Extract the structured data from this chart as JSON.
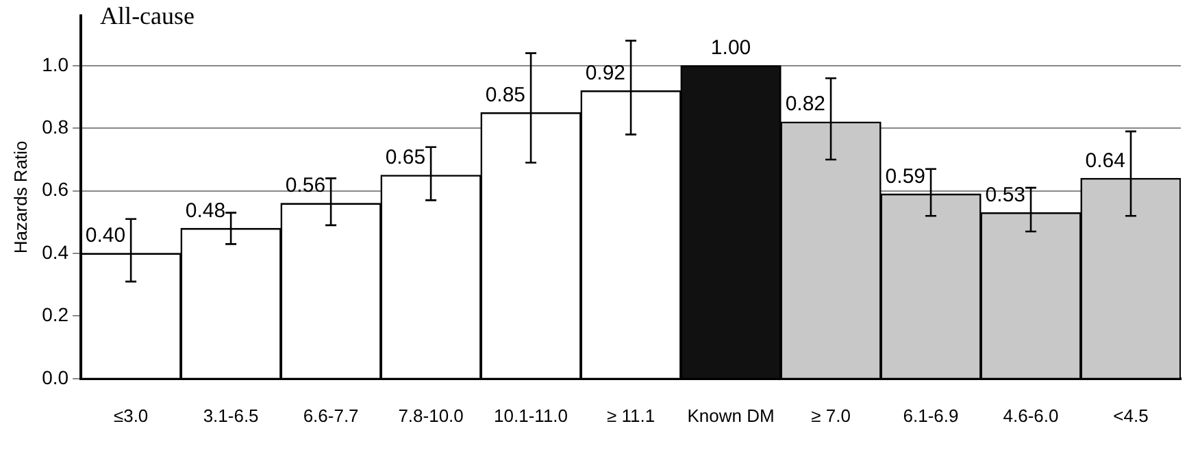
{
  "chart_data": {
    "type": "bar",
    "title": "All-cause",
    "ylabel": "Hazards Ratio",
    "categories": [
      "≤3.0",
      "3.1-6.5",
      "6.6-7.7",
      "7.8-10.0",
      "10.1-11.0",
      "≥ 11.1",
      "Known DM",
      "≥ 7.0",
      "6.1-6.9",
      "4.6-6.0",
      "<4.5"
    ],
    "values": [
      0.4,
      0.48,
      0.56,
      0.65,
      0.85,
      0.92,
      1.0,
      0.82,
      0.59,
      0.53,
      0.64
    ],
    "colors": [
      "#ffffff",
      "#ffffff",
      "#ffffff",
      "#ffffff",
      "#ffffff",
      "#ffffff",
      "#111111",
      "#c8c8c8",
      "#c8c8c8",
      "#c8c8c8",
      "#c8c8c8"
    ],
    "errors": [
      [
        0.31,
        0.51
      ],
      [
        0.43,
        0.53
      ],
      [
        0.49,
        0.64
      ],
      [
        0.57,
        0.74
      ],
      [
        0.69,
        1.04
      ],
      [
        0.78,
        1.08
      ],
      null,
      [
        0.7,
        0.96
      ],
      [
        0.52,
        0.67
      ],
      [
        0.47,
        0.61
      ],
      [
        0.52,
        0.79
      ]
    ],
    "ylim": [
      0,
      1.16
    ],
    "yticks": [
      {
        "value": 0,
        "label": "0.0"
      },
      {
        "value": 0.2,
        "label": "0.2"
      },
      {
        "value": 0.4,
        "label": "0.4"
      },
      {
        "value": 0.6,
        "label": "0.6"
      },
      {
        "value": 0.8,
        "label": "0.8"
      },
      {
        "value": 1,
        "label": "1.0"
      }
    ],
    "value_labels": [
      "0.40",
      "0.48",
      "0.56",
      "0.65",
      "0.85",
      "0.92",
      "1.00",
      "0.82",
      "0.59",
      "0.53",
      "0.64"
    ],
    "grid": "y"
  }
}
